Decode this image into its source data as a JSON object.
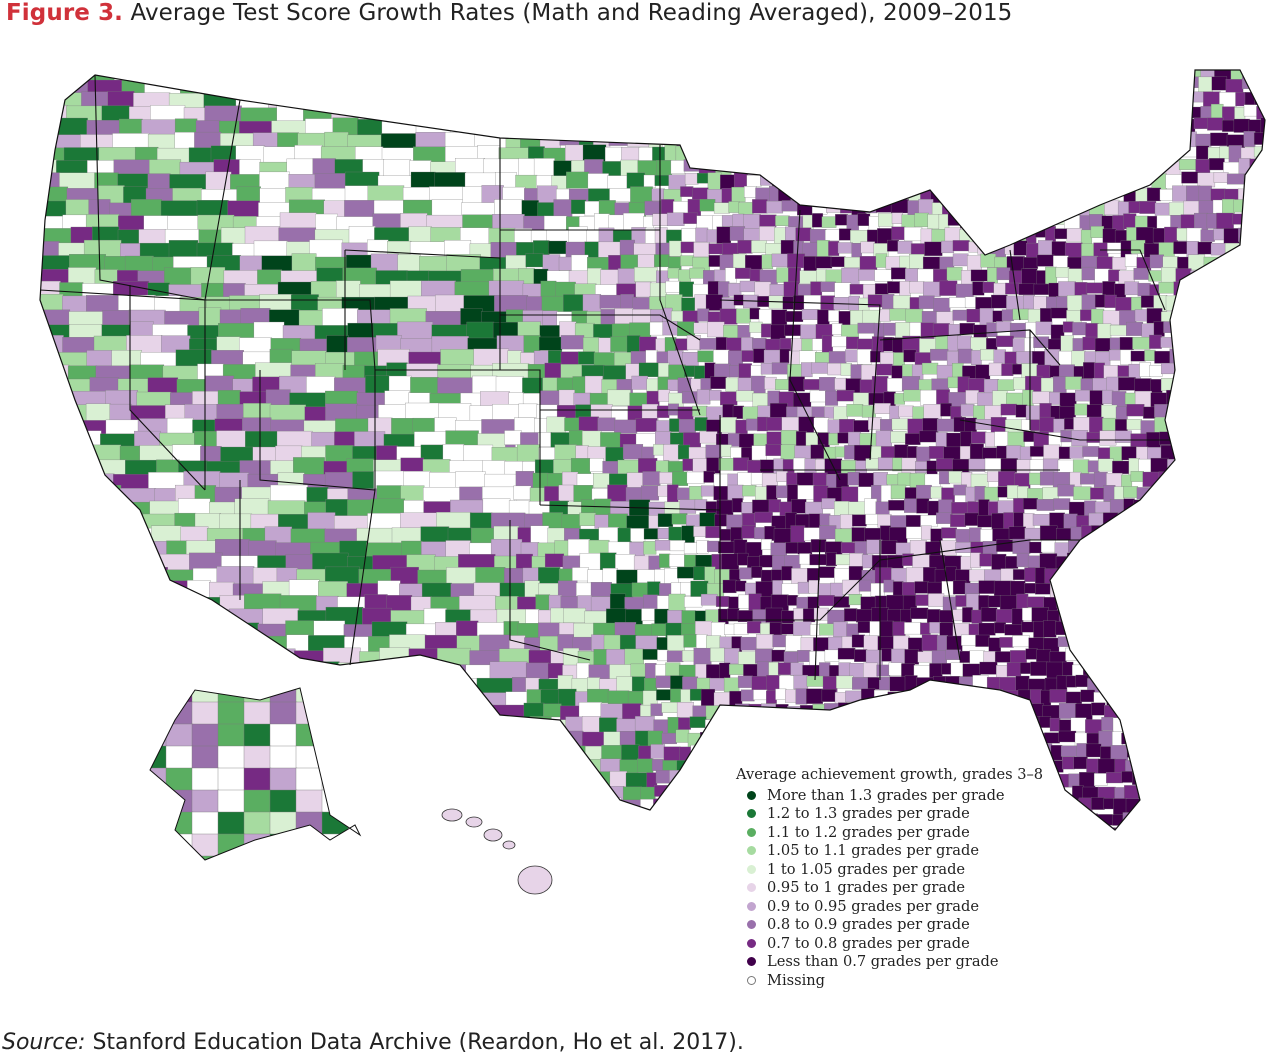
{
  "title": {
    "figure_label": "Figure 3.",
    "text": "Average Test Score Growth Rates (Math and Reading Averaged), 2009–2015"
  },
  "legend": {
    "title": "Average achievement growth, grades 3–8",
    "items": [
      {
        "label": "More than 1.3 grades per grade",
        "color": "#00441b"
      },
      {
        "label": "1.2 to 1.3 grades per grade",
        "color": "#1b7837"
      },
      {
        "label": "1.1 to 1.2 grades per grade",
        "color": "#5aae61"
      },
      {
        "label": "1.05 to 1.1 grades per grade",
        "color": "#a6dba0"
      },
      {
        "label": "1 to 1.05 grades per grade",
        "color": "#d9f0d3"
      },
      {
        "label": "0.95 to 1 grades per grade",
        "color": "#e7d4e8"
      },
      {
        "label": "0.9 to 0.95 grades per grade",
        "color": "#c2a5cf"
      },
      {
        "label": "0.8 to 0.9 grades per grade",
        "color": "#9970ab"
      },
      {
        "label": "0.7 to 0.8 grades per grade",
        "color": "#762a83"
      },
      {
        "label": "Less than 0.7 grades per grade",
        "color": "#40004b"
      },
      {
        "label": "Missing",
        "color": "#ffffff"
      }
    ]
  },
  "source": {
    "label": "Source:",
    "text": "Stanford Education Data Archive (Reardon, Ho et al. 2017)."
  }
}
